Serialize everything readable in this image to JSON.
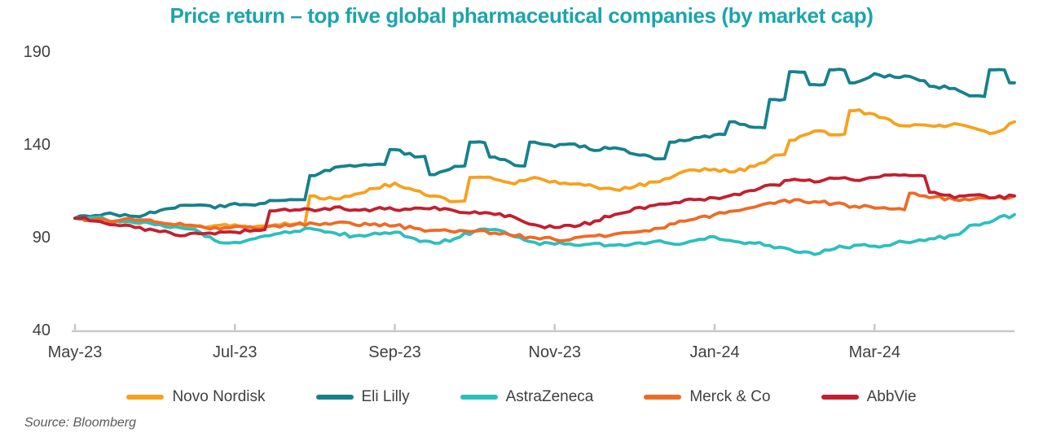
{
  "title": "Price return – top five global pharmaceutical companies (by market cap)",
  "source": "Source: Bloomberg",
  "colors": {
    "title": "#1CA4AE",
    "axis_text": "#3F3F3F",
    "axis_line": "#C9C9C9",
    "source_text": "#595959"
  },
  "chart_data": {
    "type": "line",
    "title": "Price return – top five global pharmaceutical companies (by market cap)",
    "xlabel": "",
    "ylabel": "",
    "x_unit": "months since May-2023 (indexed price return, May-23 = 100)",
    "grid": false,
    "legend_position": "bottom",
    "ylim": [
      40,
      190
    ],
    "xlim": [
      0,
      11.75
    ],
    "y_ticks": [
      40,
      90,
      140,
      190
    ],
    "x_ticks": [
      {
        "pos": 0,
        "label": "May-23"
      },
      {
        "pos": 2,
        "label": "Jul-23"
      },
      {
        "pos": 4,
        "label": "Sep-23"
      },
      {
        "pos": 6,
        "label": "Nov-23"
      },
      {
        "pos": 8,
        "label": "Jan-24"
      },
      {
        "pos": 10,
        "label": "Mar-24"
      }
    ],
    "x": [
      0,
      0.25,
      0.5,
      0.75,
      1,
      1.25,
      1.5,
      1.75,
      2,
      2.25,
      2.5,
      2.75,
      3,
      3.25,
      3.5,
      3.75,
      4,
      4.25,
      4.5,
      4.75,
      5,
      5.25,
      5.5,
      5.75,
      6,
      6.25,
      6.5,
      6.75,
      7,
      7.25,
      7.5,
      7.75,
      8,
      8.25,
      8.5,
      8.75,
      9,
      9.25,
      9.5,
      9.75,
      10,
      10.25,
      10.5,
      10.75,
      11,
      11.25,
      11.5,
      11.75
    ],
    "series": [
      {
        "name": "Novo Nordisk",
        "color": "#F7A11E",
        "values": [
          100,
          99,
          98,
          97.5,
          98,
          96.5,
          95.5,
          96,
          96.5,
          95.5,
          96.5,
          97,
          112,
          110.5,
          113,
          116,
          119,
          115,
          112,
          109,
          122,
          121,
          118.5,
          122,
          120,
          118.5,
          117,
          115.5,
          117,
          119.5,
          123,
          126,
          126.5,
          125,
          128,
          134,
          142,
          147,
          145,
          158,
          156,
          151,
          150.5,
          149.5,
          151,
          148.5,
          146,
          152
        ]
      },
      {
        "name": "Eli Lilly",
        "color": "#16818C",
        "values": [
          100,
          101.5,
          102,
          101,
          103,
          105.5,
          107,
          105.5,
          108,
          107,
          109.5,
          110,
          123,
          127.5,
          128,
          129,
          137,
          133,
          123.5,
          128,
          141,
          133,
          128.5,
          141,
          138.5,
          140,
          136.5,
          138,
          134.5,
          132,
          141,
          143.5,
          145,
          152,
          149,
          164,
          179,
          172,
          180,
          173,
          178,
          176,
          175.5,
          171,
          170,
          166,
          180,
          173
        ]
      },
      {
        "name": "AstraZeneca",
        "color": "#2CBFBE",
        "values": [
          100,
          100.5,
          98.5,
          97.5,
          96.5,
          95.5,
          94,
          88,
          87,
          89,
          91.5,
          93,
          94,
          92,
          90.5,
          92,
          92.5,
          89,
          86.5,
          89,
          93,
          94,
          90,
          87,
          86,
          85.5,
          86.5,
          85.5,
          86.5,
          87.5,
          86,
          88,
          90,
          87.5,
          86.5,
          84,
          82,
          80.5,
          83.5,
          85.5,
          85,
          86.5,
          87.5,
          89,
          91,
          96.5,
          99,
          102
        ]
      },
      {
        "name": "Merck & Co",
        "color": "#EF6A27",
        "values": [
          100,
          99.5,
          98.5,
          99,
          98,
          96.5,
          96,
          95,
          95.5,
          94.5,
          96,
          96.5,
          97,
          97.5,
          96.5,
          97,
          96,
          94.5,
          93.5,
          92.5,
          93,
          92,
          90.5,
          89.5,
          88.5,
          89.5,
          90.5,
          91.5,
          92.5,
          94.5,
          97,
          99.5,
          102,
          104,
          106,
          108,
          110,
          109,
          108,
          106.5,
          105.5,
          105,
          113.5,
          111.5,
          110,
          110.5,
          111,
          112
        ]
      },
      {
        "name": "AbbVie",
        "color": "#C2202F",
        "values": [
          100,
          98.5,
          96.5,
          95,
          93.5,
          91,
          92,
          91.5,
          92.5,
          93.5,
          104,
          104.5,
          104,
          106,
          104.5,
          105,
          104.5,
          105.5,
          106,
          104,
          103.5,
          102,
          100.5,
          96.5,
          95,
          95.5,
          98.5,
          102,
          105.5,
          107,
          108.5,
          110,
          111,
          113,
          115,
          118,
          121,
          119.5,
          121.5,
          120.5,
          122,
          123.5,
          123,
          114,
          111,
          112.5,
          111,
          112
        ]
      }
    ]
  }
}
